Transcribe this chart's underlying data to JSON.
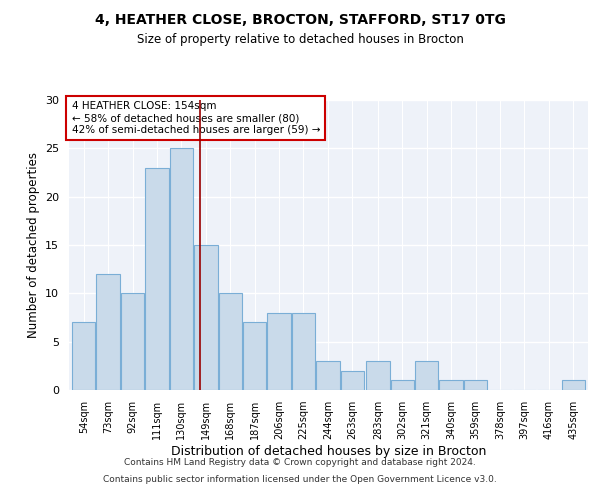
{
  "title_line1": "4, HEATHER CLOSE, BROCTON, STAFFORD, ST17 0TG",
  "title_line2": "Size of property relative to detached houses in Brocton",
  "xlabel": "Distribution of detached houses by size in Brocton",
  "ylabel": "Number of detached properties",
  "bar_edges": [
    54,
    73,
    92,
    111,
    130,
    149,
    168,
    187,
    206,
    225,
    244,
    263,
    283,
    302,
    321,
    340,
    359,
    378,
    397,
    416,
    435
  ],
  "bar_heights": [
    7,
    12,
    10,
    23,
    25,
    15,
    10,
    7,
    8,
    8,
    3,
    2,
    3,
    1,
    3,
    1,
    1,
    0,
    0,
    0,
    1
  ],
  "bar_color": "#c9daea",
  "bar_edge_color": "#7aaed6",
  "vline_x": 154,
  "vline_color": "#990000",
  "annotation_text": "4 HEATHER CLOSE: 154sqm\n← 58% of detached houses are smaller (80)\n42% of semi-detached houses are larger (59) →",
  "annotation_box_color": "#cc0000",
  "ylim": [
    0,
    30
  ],
  "yticks": [
    0,
    5,
    10,
    15,
    20,
    25,
    30
  ],
  "footer_line1": "Contains HM Land Registry data © Crown copyright and database right 2024.",
  "footer_line2": "Contains public sector information licensed under the Open Government Licence v3.0.",
  "plot_bg_color": "#eef2f9",
  "fig_bg_color": "#ffffff",
  "grid_color": "#ffffff"
}
